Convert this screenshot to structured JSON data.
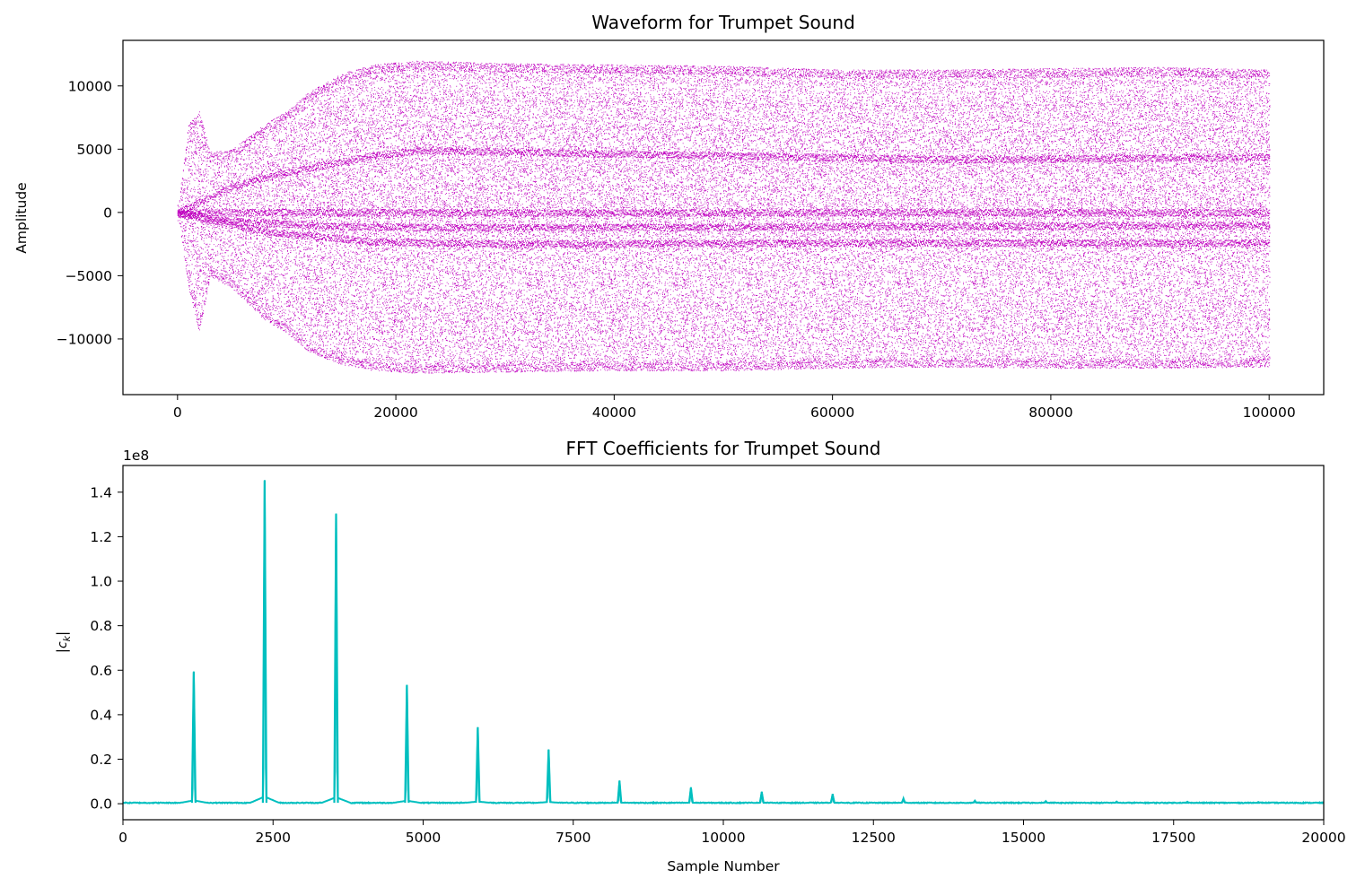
{
  "chart_data": [
    {
      "type": "scatter",
      "title": "Waveform for Trumpet Sound",
      "xlabel": "",
      "ylabel": "Amplitude",
      "xlim": [
        -5000,
        105000
      ],
      "ylim": [
        -14400,
        13600
      ],
      "xticks": [
        0,
        20000,
        40000,
        60000,
        80000,
        100000
      ],
      "xtick_labels": [
        "0",
        "20000",
        "40000",
        "60000",
        "80000",
        "100000"
      ],
      "yticks": [
        10000,
        5000,
        0,
        -5000,
        -10000
      ],
      "ytick_labels": [
        "10000",
        "5000",
        "0",
        "−5000",
        "−10000"
      ],
      "color": "#bf00bf",
      "series": [
        {
          "envelope_x": [
            0,
            1000,
            2000,
            3000,
            5000,
            8000,
            10000,
            12000,
            15000,
            18000,
            22000,
            30000,
            40000,
            50000,
            60000,
            70000,
            80000,
            90000,
            100000
          ],
          "upper": [
            0,
            7000,
            8000,
            4800,
            5000,
            7000,
            8000,
            9500,
            11000,
            11700,
            12000,
            11800,
            11700,
            11600,
            11300,
            11300,
            11400,
            11500,
            11300
          ],
          "lower": [
            0,
            -6000,
            -9500,
            -5000,
            -6000,
            -8500,
            -9500,
            -11000,
            -12000,
            -12500,
            -12700,
            -12600,
            -12500,
            -12500,
            -12300,
            -12200,
            -12300,
            -12300,
            -12200
          ],
          "bands": [
            {
              "x": [
                0,
                5000,
                10000,
                18000,
                22000,
                30000,
                50000,
                70000,
                100000
              ],
              "y": [
                0,
                2000,
                3200,
                4500,
                4900,
                4800,
                4500,
                4200,
                4400
              ]
            },
            {
              "x": [
                0,
                20000,
                100000
              ],
              "y": [
                0,
                0,
                0
              ]
            },
            {
              "x": [
                0,
                5000,
                15000,
                30000,
                100000
              ],
              "y": [
                0,
                -700,
                -1100,
                -1200,
                -1000
              ]
            },
            {
              "x": [
                0,
                8000,
                18000,
                30000,
                60000,
                100000
              ],
              "y": [
                0,
                -1500,
                -2300,
                -2500,
                -2400,
                -2400
              ]
            }
          ]
        }
      ]
    },
    {
      "type": "line",
      "title": "FFT Coefficients for Trumpet Sound",
      "xlabel": "Sample Number",
      "ylabel": "|c",
      "ylabel_sub": "k",
      "ylabel_close": "|",
      "offset_text": "1e8",
      "xlim": [
        0,
        20000
      ],
      "ylim": [
        -0.072,
        1.52
      ],
      "xticks": [
        0,
        2500,
        5000,
        7500,
        10000,
        12500,
        15000,
        17500,
        20000
      ],
      "xtick_labels": [
        "0",
        "2500",
        "5000",
        "7500",
        "10000",
        "12500",
        "15000",
        "17500",
        "20000"
      ],
      "yticks": [
        0.0,
        0.2,
        0.4,
        0.6,
        0.8,
        1.0,
        1.2,
        1.4
      ],
      "ytick_labels": [
        "0.0",
        "0.2",
        "0.4",
        "0.6",
        "0.8",
        "1.0",
        "1.2",
        "1.4"
      ],
      "color": "#00bfbf",
      "series": [
        {
          "name": "",
          "peaks_x": [
            1180,
            2360,
            3550,
            4730,
            5910,
            7090,
            8270,
            9460,
            10640,
            11820,
            13000,
            14190,
            15370,
            16550,
            17730,
            18910
          ],
          "peaks_y": [
            0.59,
            1.45,
            1.3,
            0.53,
            0.34,
            0.24,
            0.1,
            0.07,
            0.05,
            0.04,
            0.02,
            0.01,
            0.008,
            0.006,
            0.005,
            0.004
          ]
        }
      ]
    }
  ]
}
